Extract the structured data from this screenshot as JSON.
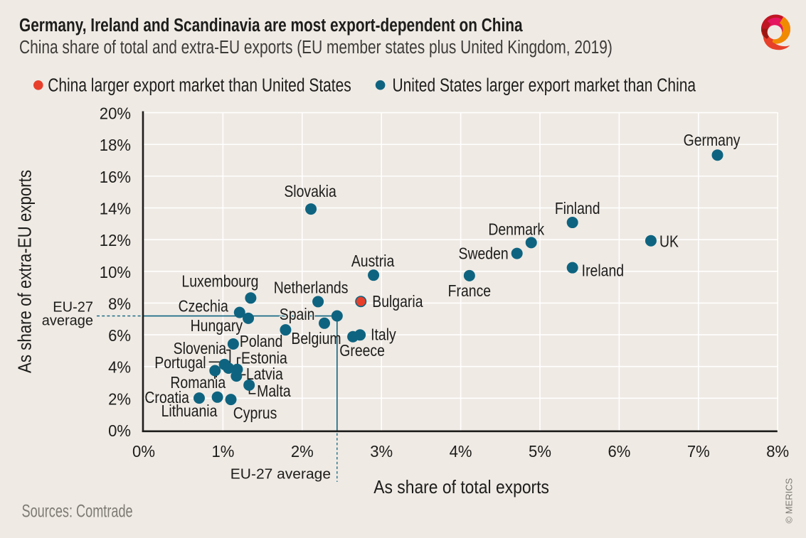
{
  "colors": {
    "background": "#EFEAE4",
    "teal": "#0E6480",
    "red": "#E83F2B",
    "text": "#1D1D1B",
    "subtitle_text": "#3C3B38",
    "muted_text": "#7D7A74",
    "grid": "#FFFFFF",
    "axis": "#1D1D1B",
    "connector": "#1D1D1B",
    "logo_orange": "#F08A00",
    "logo_pink": "#E5155F",
    "logo_crimson": "#BE1622",
    "logo_bright_red": "#E6402B",
    "logo_dark_red": "#9C1712"
  },
  "chart_data": {
    "type": "scatter",
    "title": "Germany, Ireland and Scandinavia are most export-dependent on China",
    "subtitle": "China share of total and extra-EU exports (EU member states plus United Kingdom, 2019)",
    "xlabel": "As share of total exports",
    "ylabel": "As share of extra-EU exports",
    "xlim": [
      0,
      8
    ],
    "ylim": [
      0,
      20
    ],
    "x_tick_labels": [
      "0%",
      "1%",
      "2%",
      "3%",
      "4%",
      "5%",
      "6%",
      "7%",
      "8%"
    ],
    "y_tick_labels": [
      "0%",
      "2%",
      "4%",
      "6%",
      "8%",
      "10%",
      "12%",
      "14%",
      "16%",
      "18%",
      "20%"
    ],
    "grid": true,
    "legend_position": "top-left",
    "series": [
      {
        "name": "China larger export market than United States",
        "color": "red",
        "points": [
          {
            "country": "Bulgaria",
            "x": 2.74,
            "y": 8.1,
            "label": {
              "dx": 16,
              "dy": 0,
              "anchor": "start"
            }
          }
        ]
      },
      {
        "name": "United States larger export market than China",
        "color": "teal",
        "points": [
          {
            "country": "Germany",
            "x": 7.24,
            "y": 17.33,
            "label": {
              "dx": -8,
              "dy": -21,
              "anchor": "middle"
            }
          },
          {
            "country": "Slovakia",
            "x": 2.11,
            "y": 13.93,
            "label": {
              "dx": -1,
              "dy": -25,
              "anchor": "middle"
            }
          },
          {
            "country": "Finland",
            "x": 5.41,
            "y": 13.08,
            "label": {
              "dx": 7,
              "dy": -20,
              "anchor": "middle"
            }
          },
          {
            "country": "UK",
            "x": 6.4,
            "y": 11.93,
            "label": {
              "dx": 12,
              "dy": 1,
              "anchor": "start"
            }
          },
          {
            "country": "Denmark",
            "x": 4.89,
            "y": 11.81,
            "label": {
              "dx": -21,
              "dy": -19,
              "anchor": "middle"
            }
          },
          {
            "country": "Sweden",
            "x": 4.71,
            "y": 11.13,
            "label": {
              "dx": -12,
              "dy": 0,
              "anchor": "end"
            }
          },
          {
            "country": "Ireland",
            "x": 5.41,
            "y": 10.23,
            "label": {
              "dx": 13,
              "dy": 4,
              "anchor": "start"
            }
          },
          {
            "country": "Austria",
            "x": 2.9,
            "y": 9.76,
            "label": {
              "dx": -1,
              "dy": -20,
              "anchor": "middle"
            }
          },
          {
            "country": "France",
            "x": 4.11,
            "y": 9.73,
            "label": {
              "dx": 0,
              "dy": 21,
              "anchor": "middle"
            }
          },
          {
            "country": "Luxembourg",
            "x": 1.35,
            "y": 8.32,
            "label": {
              "dx": -43,
              "dy": -24,
              "anchor": "middle"
            }
          },
          {
            "country": "Netherlands",
            "x": 2.2,
            "y": 8.09,
            "label": {
              "dx": -10,
              "dy": -20,
              "anchor": "middle"
            }
          },
          {
            "country": "Czechia",
            "x": 1.21,
            "y": 7.41,
            "label": {
              "dx": -16,
              "dy": -9,
              "anchor": "end"
            }
          },
          {
            "country": "Hungary",
            "x": 1.32,
            "y": 7.04,
            "label": {
              "dx": -8,
              "dy": 10,
              "anchor": "end"
            }
          },
          {
            "country": "Spain",
            "x": 2.28,
            "y": 6.73,
            "label": {
              "dx": -13.5,
              "dy": -13,
              "anchor": "end",
              "halo": true
            }
          },
          {
            "country": "Belgium",
            "x": 1.79,
            "y": 6.31,
            "label": {
              "dx": 8,
              "dy": 12,
              "anchor": "start"
            }
          },
          {
            "country": "Italy",
            "x": 2.73,
            "y": 5.99,
            "label": {
              "dx": 15,
              "dy": -1,
              "anchor": "start"
            }
          },
          {
            "country": "Greece",
            "x": 2.64,
            "y": 5.88,
            "label": {
              "dx": 13,
              "dy": 19,
              "anchor": "middle"
            }
          },
          {
            "country": "Poland",
            "x": 1.13,
            "y": 5.42,
            "label": {
              "dx": 9,
              "dy": -4,
              "anchor": "start"
            }
          },
          {
            "country": "Portugal",
            "x": 1.02,
            "y": 4.13,
            "label": {
              "dx": -26,
              "dy": -3,
              "anchor": "end",
              "connector": [
                [
                  -22,
                  -3.5
                ],
                [
                  -6,
                  -3.5
                ]
              ]
            }
          },
          {
            "country": "Slovenia",
            "x": 1.07,
            "y": 3.9,
            "label": {
              "dx": -3,
              "dy": -28,
              "anchor": "end",
              "connector": [
                [
                  -3.2,
                  -25.3
                ],
                [
                  2.2,
                  -25.3
                ],
                [
                  2.2,
                  -6
                ]
              ]
            }
          },
          {
            "country": "Estonia",
            "x": 1.18,
            "y": 3.82,
            "label": {
              "dx": 5.5,
              "dy": -16,
              "anchor": "start",
              "connector": [
                [
                  5,
                  -16.2
                ],
                [
                  0.4,
                  -16.2
                ],
                [
                  0.4,
                  -2.7
                ]
              ]
            }
          },
          {
            "country": "Romania",
            "x": 0.9,
            "y": 3.74,
            "label": {
              "dx": -24,
              "dy": 16.5,
              "anchor": "middle",
              "connector": [
                [
                  -0.3,
                  2.5
                ],
                [
                  -0.3,
                  11.5
                ]
              ]
            }
          },
          {
            "country": "Latvia",
            "x": 1.17,
            "y": 3.4,
            "label": {
              "dx": 13.6,
              "dy": -3,
              "anchor": "start",
              "connector": [
                [
                  1.6,
                  -1.8
                ],
                [
                  13.1,
                  -1.8
                ]
              ]
            }
          },
          {
            "country": "Malta",
            "x": 1.33,
            "y": 2.83,
            "label": {
              "dx": 11,
              "dy": 8,
              "anchor": "start",
              "connector": [
                [
                  0.4,
                  4.2
                ],
                [
                  0.4,
                  12
                ],
                [
                  9.3,
                  12
                ]
              ]
            }
          },
          {
            "country": "Lithuania",
            "x": 0.93,
            "y": 2.07,
            "label": {
              "dx": -39.6,
              "dy": 19,
              "anchor": "middle"
            }
          },
          {
            "country": "Croatia",
            "x": 0.7,
            "y": 2.01,
            "label": {
              "dx": -14,
              "dy": -1,
              "anchor": "end"
            }
          },
          {
            "country": "Cyprus",
            "x": 1.1,
            "y": 1.92,
            "label": {
              "dx": 34,
              "dy": 19,
              "anchor": "middle"
            }
          }
        ]
      }
    ],
    "eu27_average": {
      "x": 2.44,
      "y": 7.19,
      "marker": true,
      "left_label_lines": [
        "EU-27",
        "average"
      ],
      "bottom_label": "EU-27 average"
    }
  },
  "footer": {
    "sources": "Sources: Comtrade",
    "credit": "© MERICS"
  },
  "logo": {
    "name": "merics-logo"
  }
}
